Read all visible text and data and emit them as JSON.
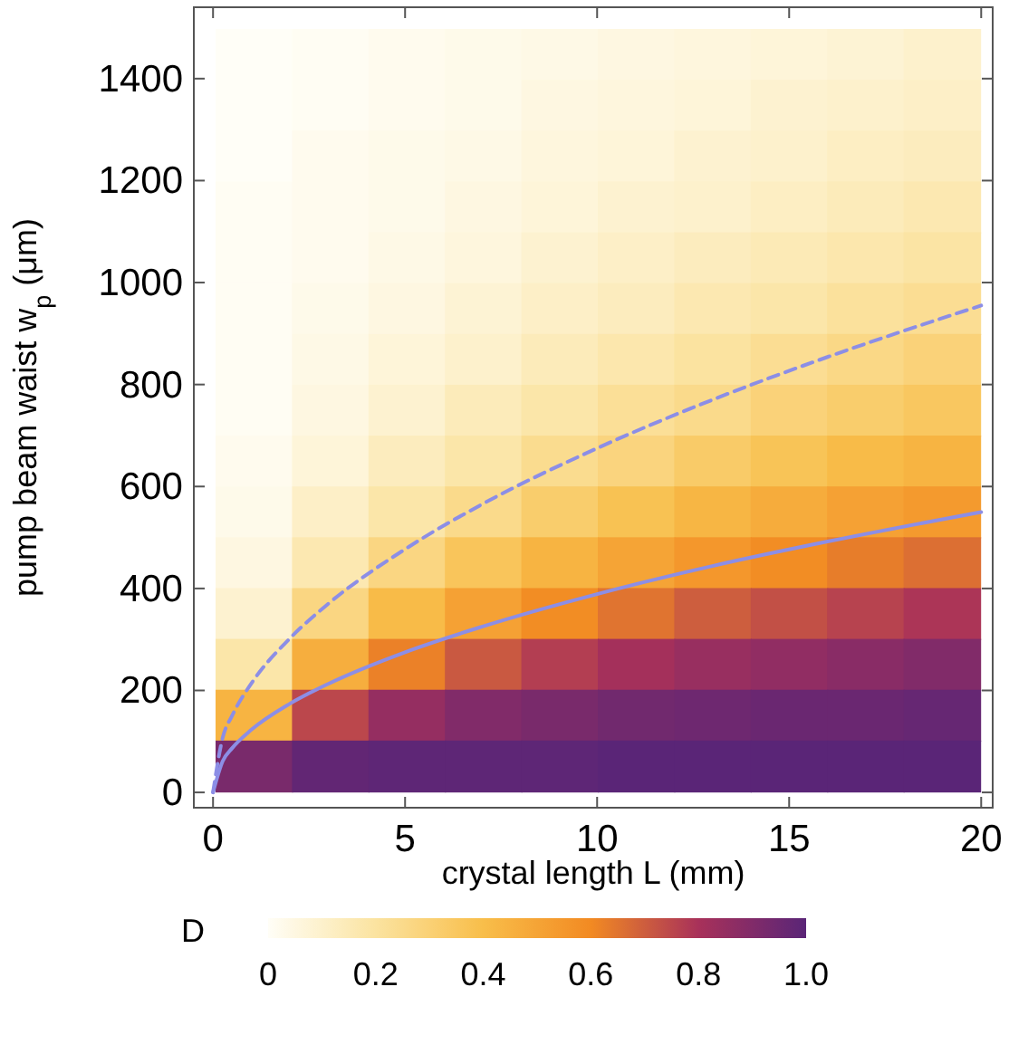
{
  "chart_data": [
    {
      "type": "line",
      "xlabel": "crystal length L (mm)",
      "ylabel": "pump beam waist w$_{p}$ (μm)",
      "xlim": [
        -0.5,
        20.3
      ],
      "ylim": [
        -30,
        1540
      ],
      "xticks": [
        0,
        5,
        10,
        15,
        20
      ],
      "yticks": [
        0,
        200,
        400,
        600,
        800,
        1000,
        1200,
        1400
      ],
      "series": [
        {
          "color": "#8c8ee6",
          "line_style": "solid",
          "x": [
            0,
            0.25,
            0.5,
            1,
            2,
            3,
            5,
            7,
            10,
            13,
            16,
            20
          ],
          "values": [
            0,
            61,
            87,
            123,
            174,
            213,
            275,
            325,
            389,
            444,
            492,
            550
          ]
        },
        {
          "color": "#8c8ee6",
          "line_style": "dashed",
          "x": [
            0,
            0.25,
            0.5,
            1,
            2,
            3,
            5,
            7,
            10,
            13,
            16,
            20
          ],
          "values": [
            0,
            107,
            151,
            214,
            302,
            370,
            477,
            565,
            675,
            770,
            854,
            955
          ]
        }
      ]
    },
    {
      "type": "heatmap",
      "clabel": "D",
      "clim": [
        0,
        1
      ],
      "cticks": [
        0,
        0.2,
        0.4,
        0.6,
        0.8,
        {
          "value": 1,
          "label": "1.0"
        }
      ],
      "categories": [
        null,
        null,
        null,
        null,
        null,
        null,
        null,
        null,
        null,
        null
      ],
      "y_categories": [
        null,
        null,
        null,
        null,
        null,
        null,
        null,
        null,
        null,
        null,
        null,
        null,
        null,
        null,
        null
      ],
      "cells": [
        [
          0.0,
          0.01,
          0.02,
          0.03,
          0.04,
          0.05,
          0.06,
          0.07,
          0.08,
          0.1
        ],
        [
          0.0,
          0.01,
          0.02,
          0.03,
          0.05,
          0.06,
          0.07,
          0.09,
          0.1,
          0.11
        ],
        [
          0.0,
          0.02,
          0.03,
          0.04,
          0.06,
          0.07,
          0.09,
          0.1,
          0.12,
          0.13
        ],
        [
          0.01,
          0.02,
          0.03,
          0.05,
          0.07,
          0.09,
          0.1,
          0.12,
          0.14,
          0.16
        ],
        [
          0.01,
          0.02,
          0.04,
          0.06,
          0.09,
          0.11,
          0.13,
          0.15,
          0.17,
          0.19
        ],
        [
          0.01,
          0.03,
          0.05,
          0.08,
          0.11,
          0.13,
          0.16,
          0.18,
          0.21,
          0.23
        ],
        [
          0.01,
          0.04,
          0.07,
          0.1,
          0.14,
          0.17,
          0.2,
          0.23,
          0.26,
          0.29
        ],
        [
          0.01,
          0.05,
          0.09,
          0.14,
          0.18,
          0.22,
          0.25,
          0.29,
          0.32,
          0.35
        ],
        [
          0.02,
          0.07,
          0.13,
          0.18,
          0.24,
          0.28,
          0.33,
          0.37,
          0.41,
          0.44
        ],
        [
          0.03,
          0.11,
          0.18,
          0.25,
          0.32,
          0.38,
          0.43,
          0.47,
          0.51,
          0.54
        ],
        [
          0.05,
          0.16,
          0.27,
          0.36,
          0.44,
          0.5,
          0.55,
          0.59,
          0.63,
          0.66
        ],
        [
          0.09,
          0.27,
          0.41,
          0.51,
          0.59,
          0.65,
          0.7,
          0.73,
          0.76,
          0.79
        ],
        [
          0.18,
          0.46,
          0.62,
          0.71,
          0.77,
          0.81,
          0.84,
          0.86,
          0.88,
          0.9
        ],
        [
          0.44,
          0.75,
          0.85,
          0.9,
          0.92,
          0.94,
          0.95,
          0.96,
          0.96,
          0.97
        ],
        [
          0.92,
          0.98,
          0.99,
          0.99,
          0.99,
          1.0,
          1.0,
          1.0,
          1.0,
          1.0
        ]
      ]
    }
  ]
}
